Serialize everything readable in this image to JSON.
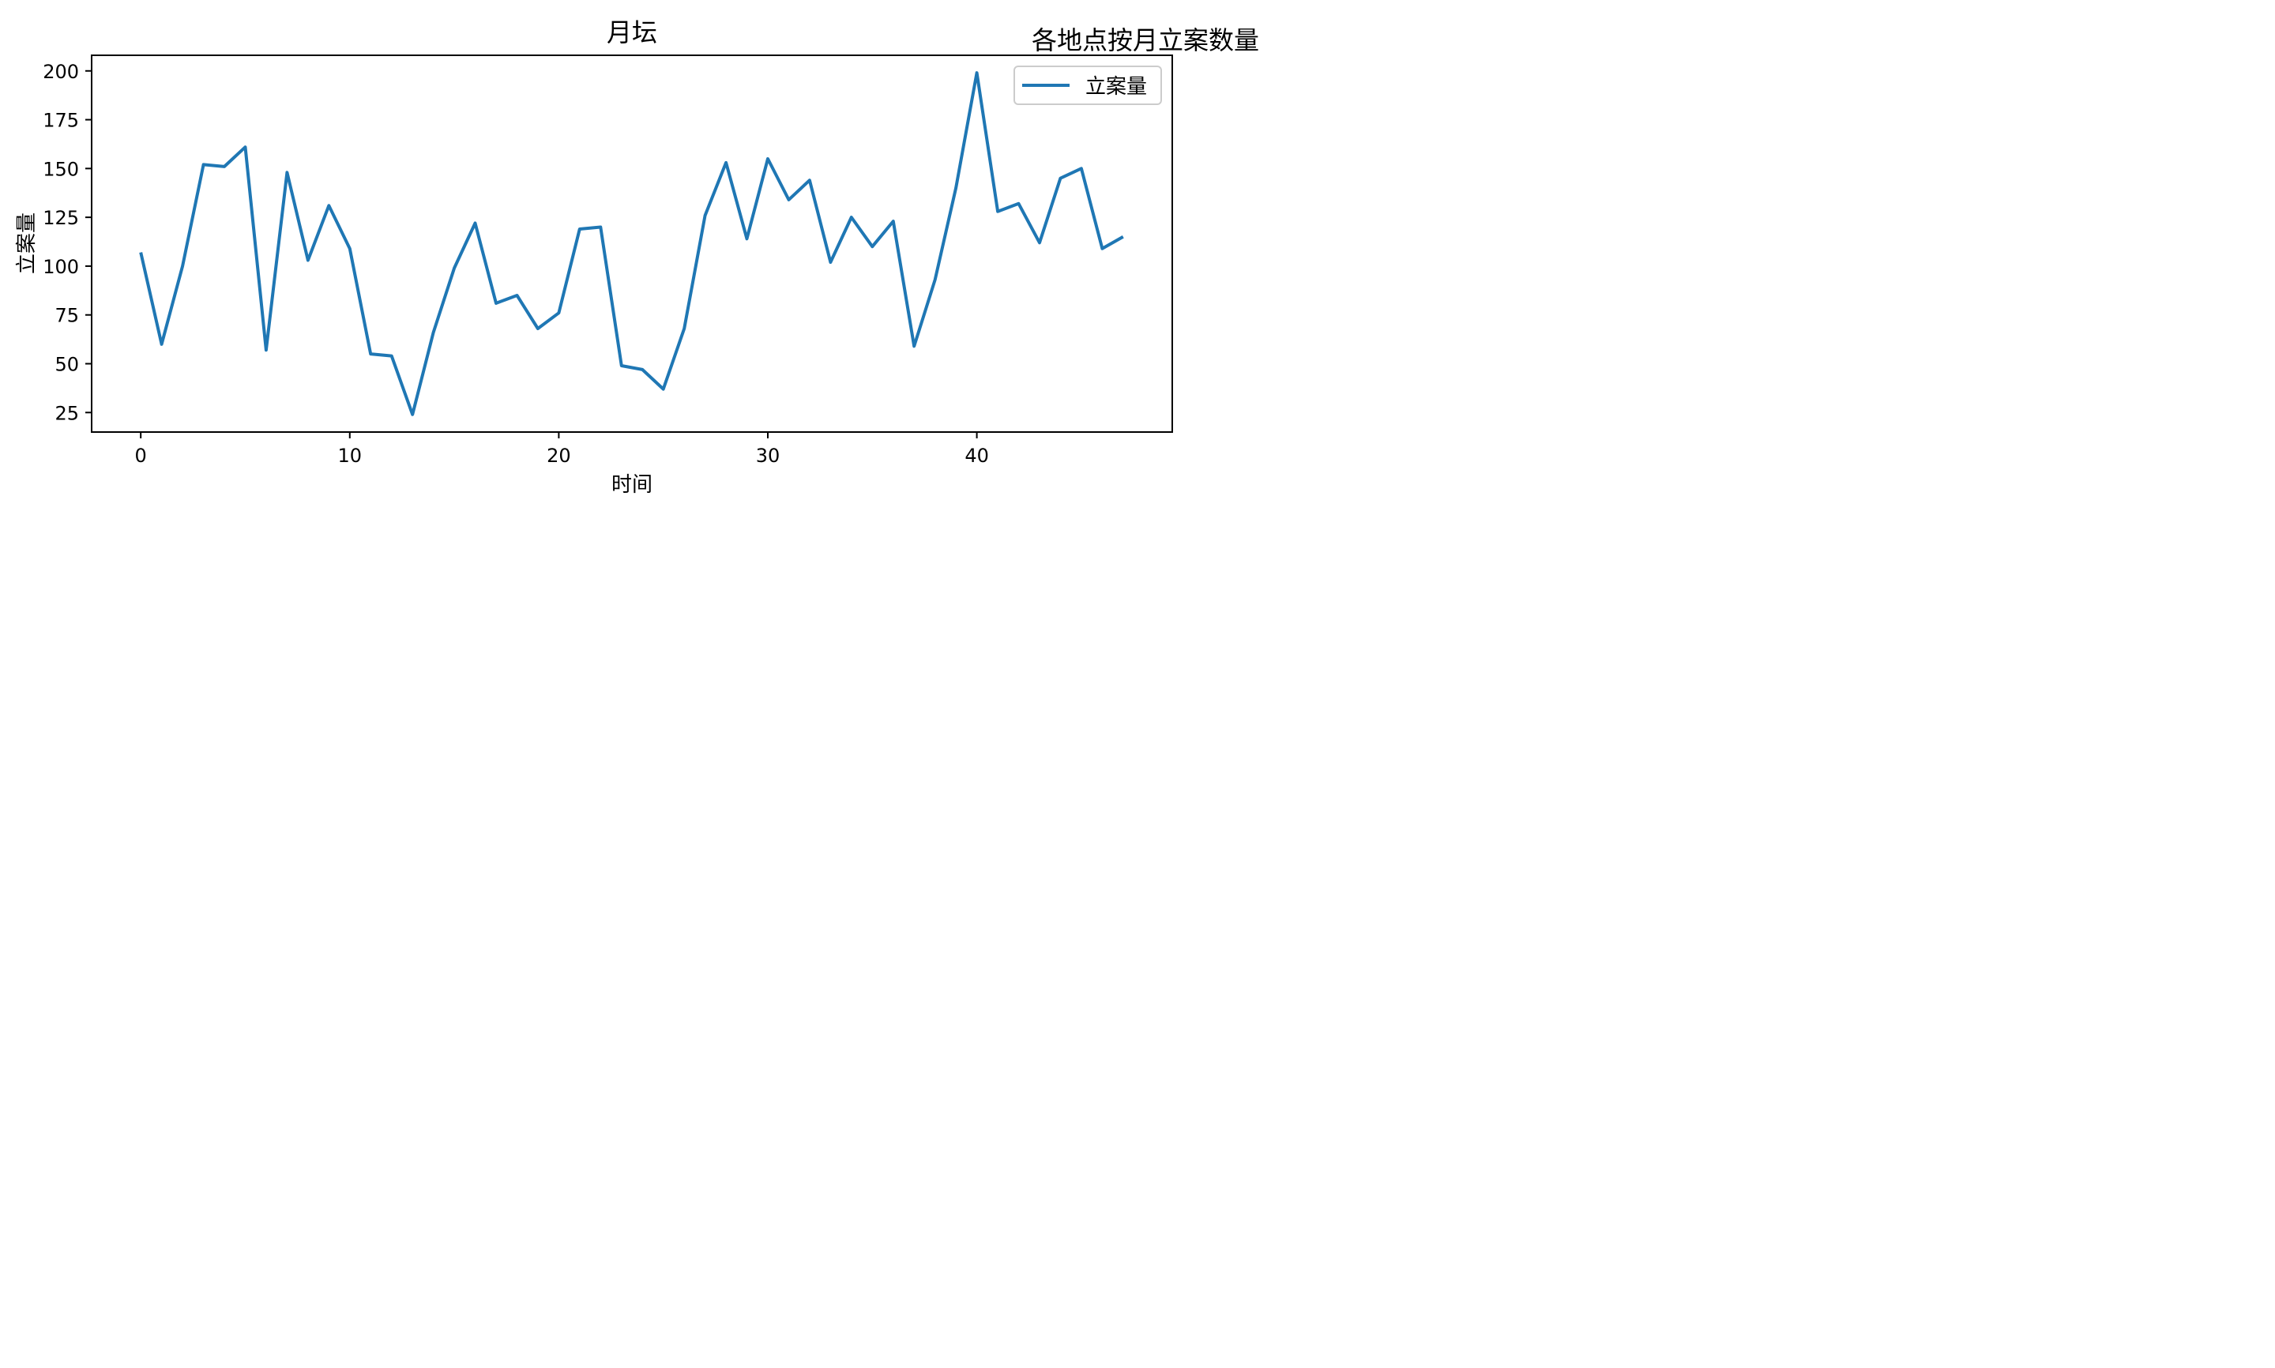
{
  "figure": {
    "suptitle": "各地点按月立案数量"
  },
  "chart_data": {
    "type": "line",
    "title": "月坛",
    "xlabel": "时间",
    "ylabel": "立案量",
    "xlim": [
      -2.35,
      49.35
    ],
    "ylim": [
      15,
      208
    ],
    "xticks": [
      0,
      10,
      20,
      30,
      40
    ],
    "yticks": [
      25,
      50,
      75,
      100,
      125,
      150,
      175,
      200
    ],
    "grid": false,
    "legend": {
      "placement": "upper right",
      "entries": [
        "立案量"
      ]
    },
    "colors": {
      "line": "#1f77b4",
      "axes": "#000000",
      "legend_border": "#cccccc"
    },
    "series": [
      {
        "name": "立案量",
        "x": [
          0,
          1,
          2,
          3,
          4,
          5,
          6,
          7,
          8,
          9,
          10,
          11,
          12,
          13,
          14,
          15,
          16,
          17,
          18,
          19,
          20,
          21,
          22,
          23,
          24,
          25,
          26,
          27,
          28,
          29,
          30,
          31,
          32,
          33,
          34,
          35,
          36,
          37,
          38,
          39,
          40,
          41,
          42,
          43,
          44,
          45,
          46,
          47
        ],
        "values": [
          107,
          60,
          100,
          152,
          151,
          161,
          57,
          148,
          103,
          131,
          109,
          55,
          54,
          24,
          66,
          99,
          122,
          81,
          85,
          68,
          76,
          119,
          120,
          49,
          47,
          37,
          68,
          126,
          153,
          114,
          155,
          134,
          144,
          102,
          125,
          110,
          123,
          59,
          93,
          140,
          199,
          128,
          132,
          112,
          145,
          150,
          109,
          115
        ]
      }
    ]
  }
}
